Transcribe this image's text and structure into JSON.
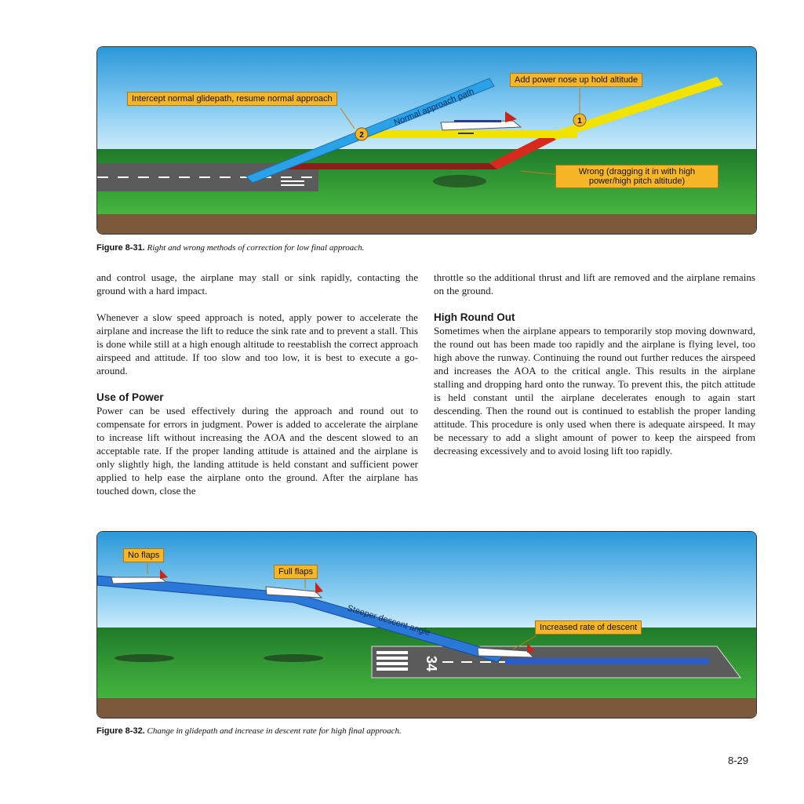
{
  "figure1": {
    "callouts": {
      "intercept": "Intercept normal glidepath, resume normal approach",
      "add_power": "Add power nose up hold altitude",
      "wrong": "Wrong (dragging it in with high power/high pitch altitude)"
    },
    "path_label": "Normal approach path",
    "markers": [
      "1",
      "2"
    ],
    "caption_number": "Figure 8-31.",
    "caption_text": "Right and wrong methods of correction for low final approach."
  },
  "body": {
    "left_p1": "and control usage, the airplane may stall or sink rapidly, contacting the ground with a hard impact.",
    "left_p2": "Whenever a slow speed approach is noted, apply power to accelerate the airplane and increase the lift to reduce the sink rate and to prevent a stall. This is done while still at a high enough altitude to reestablish the correct approach airspeed and attitude. If too slow and too low, it is best to execute a go-around.",
    "use_of_power_heading": "Use of Power",
    "left_p3": "Power can be used effectively during the approach and round out to compensate for errors in judgment. Power is added to accelerate the airplane to increase lift without increasing the AOA and the descent slowed to an acceptable rate. If the proper landing attitude is attained and the airplane is only slightly high, the landing attitude is held constant and sufficient power applied to help ease the airplane onto the ground. After the airplane has touched down, close the",
    "right_p1": "throttle so the additional thrust and lift are removed and the airplane remains on the ground.",
    "high_round_out_heading": "High Round Out",
    "right_p2": "Sometimes when the airplane appears to temporarily stop moving downward, the round out has been made too rapidly and the airplane is flying level, too high above the runway. Continuing the round out further reduces the airspeed and increases the AOA to the critical angle. This results in the airplane stalling and dropping hard onto the runway. To prevent this, the pitch attitude is held constant until the airplane decelerates enough to again start descending. Then the round out is continued to establish the proper landing attitude. This procedure is only used when there is adequate airspeed. It may be necessary to add a slight amount of power to keep the airspeed from decreasing excessively and to avoid losing lift too rapidly."
  },
  "figure2": {
    "callouts": {
      "no_flaps": "No flaps",
      "full_flaps": "Full flaps",
      "increased_rate": "Increased rate of descent"
    },
    "path_label": "Steeper descent angle",
    "runway_number": "34",
    "caption_number": "Figure 8-32.",
    "caption_text": "Change in glidepath and increase in descent rate for high final approach."
  },
  "page_number": "8-29",
  "colors": {
    "sky": "#3aa7e0",
    "grass": "#3aa63a",
    "callout": "#f7b628",
    "normal_path": "#2aa2e8",
    "level_path": "#f2e200",
    "wrong_path": "#c8261c"
  }
}
